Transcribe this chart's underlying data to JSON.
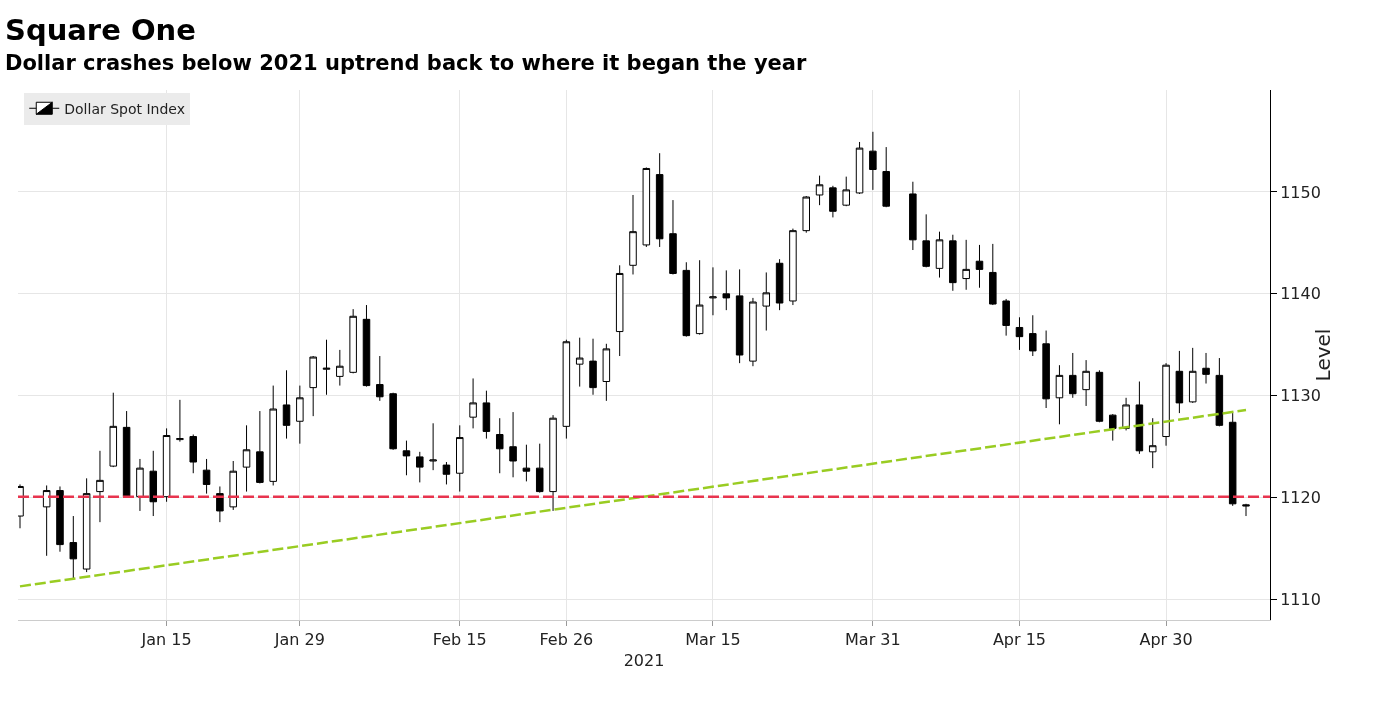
{
  "chart_data": {
    "type": "candlestick",
    "title": "Square One",
    "subtitle": "Dollar crashes below 2021 uptrend back to where it began the year",
    "xlabel": "2021",
    "ylabel": "Level",
    "categories": [
      null,
      null,
      null,
      null,
      null,
      null,
      null,
      null,
      null,
      null,
      null,
      "Jan 15",
      null,
      null,
      null,
      null,
      null,
      null,
      null,
      null,
      null,
      "Jan 29",
      null,
      null,
      null,
      null,
      null,
      null,
      null,
      null,
      null,
      null,
      null,
      "Feb 15",
      null,
      null,
      null,
      null,
      null,
      null,
      null,
      "Feb 26",
      null,
      null,
      null,
      null,
      null,
      null,
      null,
      null,
      null,
      null,
      "Mar 15",
      null,
      null,
      null,
      null,
      null,
      null,
      null,
      null,
      null,
      null,
      null,
      "Mar 31",
      null,
      null,
      null,
      null,
      null,
      null,
      null,
      null,
      null,
      null,
      "Apr 15",
      null,
      null,
      null,
      null,
      null,
      null,
      null,
      null,
      null,
      null,
      "Apr 30",
      null,
      null,
      null,
      null,
      null,
      null
    ],
    "color": "#000000",
    "series": [
      {
        "name": "Dollar Spot Index",
        "ohlc": [
          [
            1118.2,
            1121.3,
            1117.0,
            1121.1
          ],
          null,
          [
            1119.1,
            1121.2,
            1114.3,
            1120.7
          ],
          [
            1120.7,
            1121.1,
            1114.7,
            1115.4
          ],
          [
            1115.6,
            1118.2,
            1112.0,
            1114.0
          ],
          [
            1113.0,
            1121.9,
            1112.7,
            1120.4
          ],
          [
            1120.6,
            1124.6,
            1117.6,
            1121.7
          ],
          [
            1123.1,
            1130.3,
            1123.0,
            1127.0
          ],
          [
            1126.9,
            1128.5,
            1120.0,
            1120.1
          ],
          [
            1120.1,
            1123.8,
            1118.7,
            1122.9
          ],
          [
            1122.6,
            1124.6,
            1118.2,
            1119.6
          ],
          [
            1120.1,
            1126.8,
            1119.6,
            1126.1
          ],
          [
            1125.7,
            1129.6,
            1125.5,
            1125.8
          ],
          [
            1126.0,
            1126.2,
            1122.4,
            1123.5
          ],
          [
            1122.7,
            1123.8,
            1120.4,
            1121.3
          ],
          [
            1120.4,
            1121.1,
            1117.6,
            1118.7
          ],
          [
            1119.1,
            1123.6,
            1118.8,
            1122.6
          ],
          [
            1123.0,
            1127.1,
            1120.6,
            1124.7
          ],
          [
            1124.5,
            1128.5,
            1121.4,
            1121.5
          ],
          [
            1121.6,
            1131.0,
            1121.2,
            1128.7
          ],
          [
            1129.1,
            1132.5,
            1125.8,
            1127.1
          ],
          [
            1127.5,
            1131.0,
            1125.3,
            1129.8
          ],
          [
            1130.8,
            1133.9,
            1128.0,
            1133.8
          ],
          [
            1132.6,
            1135.5,
            1130.1,
            1132.7
          ],
          [
            1131.9,
            1134.5,
            1131.0,
            1132.9
          ],
          [
            1132.3,
            1138.5,
            1132.2,
            1137.8
          ],
          [
            1137.5,
            1138.9,
            1130.9,
            1131.0
          ],
          [
            1131.1,
            1133.9,
            1129.5,
            1129.9
          ],
          [
            1130.2,
            1130.3,
            1124.7,
            1124.8
          ],
          [
            1124.6,
            1125.6,
            1122.2,
            1124.1
          ],
          [
            1124.0,
            1124.5,
            1121.5,
            1123.0
          ],
          [
            1123.6,
            1127.3,
            1122.7,
            1123.7
          ],
          [
            1123.2,
            1123.5,
            1121.3,
            1122.3
          ],
          [
            1122.4,
            1127.1,
            1120.6,
            1125.9
          ],
          [
            1127.9,
            1131.7,
            1126.8,
            1129.3
          ],
          [
            1129.3,
            1130.5,
            1125.8,
            1126.5
          ],
          [
            1126.2,
            1127.8,
            1122.4,
            1124.8
          ],
          [
            1125.0,
            1128.4,
            1122.0,
            1123.6
          ],
          [
            1122.9,
            1125.2,
            1121.6,
            1122.6
          ],
          [
            1122.9,
            1125.3,
            1120.5,
            1120.6
          ],
          [
            1120.6,
            1128.1,
            1118.7,
            1127.8
          ],
          [
            1127.0,
            1135.5,
            1125.8,
            1135.3
          ],
          [
            1133.1,
            1135.7,
            1130.9,
            1133.7
          ],
          [
            1133.4,
            1135.6,
            1130.1,
            1130.8
          ],
          [
            1131.4,
            1135.1,
            1129.5,
            1134.6
          ],
          [
            1136.3,
            1142.8,
            1133.9,
            1142.0
          ],
          [
            1142.8,
            1149.7,
            1141.9,
            1146.1
          ],
          [
            1144.8,
            1152.4,
            1144.6,
            1152.3
          ],
          [
            1151.7,
            1153.8,
            1144.6,
            1145.4
          ],
          [
            1145.9,
            1149.2,
            1141.9,
            1142.0
          ],
          [
            1142.3,
            1143.1,
            1135.8,
            1135.9
          ],
          [
            1136.1,
            1143.3,
            1136.0,
            1138.9
          ],
          [
            1139.6,
            1142.6,
            1137.9,
            1139.7
          ],
          [
            1140.0,
            1142.3,
            1138.4,
            1139.6
          ],
          [
            1139.8,
            1142.4,
            1133.2,
            1134.0
          ],
          [
            1133.4,
            1139.6,
            1132.9,
            1139.2
          ],
          [
            1138.8,
            1142.1,
            1136.4,
            1140.1
          ],
          [
            1143.0,
            1143.4,
            1138.4,
            1139.1
          ],
          [
            1139.3,
            1146.4,
            1138.9,
            1146.2
          ],
          [
            1146.2,
            1149.6,
            1146.0,
            1149.5
          ],
          [
            1149.7,
            1151.6,
            1148.7,
            1150.7
          ],
          [
            1150.4,
            1150.6,
            1147.5,
            1148.1
          ],
          [
            1148.7,
            1151.5,
            1148.6,
            1150.2
          ],
          [
            1149.9,
            1154.9,
            1149.8,
            1154.3
          ],
          [
            1154.0,
            1155.9,
            1150.2,
            1152.2
          ],
          [
            1152.0,
            1154.4,
            1148.5,
            1148.6
          ],
          null,
          [
            1149.8,
            1151.0,
            1144.3,
            1145.3
          ],
          [
            1145.2,
            1147.8,
            1142.6,
            1142.7
          ],
          [
            1142.5,
            1146.1,
            1141.6,
            1145.3
          ],
          [
            1145.2,
            1145.8,
            1140.3,
            1141.1
          ],
          [
            1141.5,
            1145.3,
            1140.4,
            1142.4
          ],
          [
            1143.2,
            1144.8,
            1140.6,
            1142.4
          ],
          [
            1142.1,
            1144.9,
            1138.9,
            1139.0
          ],
          [
            1139.3,
            1139.5,
            1135.9,
            1136.9
          ],
          [
            1136.7,
            1137.7,
            1134.5,
            1135.8
          ],
          [
            1136.1,
            1137.9,
            1133.9,
            1134.4
          ],
          [
            1135.1,
            1136.4,
            1128.8,
            1129.7
          ],
          [
            1129.8,
            1133.0,
            1127.2,
            1132.0
          ],
          [
            1132.0,
            1134.2,
            1129.8,
            1130.2
          ],
          [
            1130.6,
            1133.5,
            1129.0,
            1132.4
          ],
          [
            1132.3,
            1132.5,
            1127.4,
            1127.5
          ],
          [
            1128.1,
            1128.2,
            1125.6,
            1126.8
          ],
          [
            1126.8,
            1129.8,
            1126.6,
            1129.1
          ],
          [
            1129.1,
            1131.4,
            1124.3,
            1124.6
          ],
          [
            1124.5,
            1127.8,
            1122.9,
            1125.1
          ],
          [
            1126.0,
            1133.2,
            1125.1,
            1133.0
          ],
          [
            1132.4,
            1134.4,
            1128.3,
            1129.3
          ],
          [
            1129.4,
            1134.7,
            1129.3,
            1132.4
          ],
          [
            1132.7,
            1134.2,
            1131.2,
            1132.1
          ],
          [
            1132.0,
            1133.7,
            1127.0,
            1127.1
          ],
          [
            1127.4,
            1128.3,
            1119.2,
            1119.4
          ],
          [
            1119.3,
            1119.4,
            1118.2,
            1119.2
          ]
        ]
      },
      {
        "type": "line",
        "color": "#99cc22",
        "line_style": "dashed",
        "values": [
          1111.3,
          null,
          null,
          null,
          null,
          null,
          null,
          null,
          null,
          null,
          null,
          null,
          null,
          null,
          null,
          null,
          null,
          null,
          null,
          null,
          null,
          null,
          null,
          null,
          null,
          null,
          null,
          null,
          null,
          null,
          null,
          null,
          null,
          null,
          null,
          null,
          null,
          null,
          null,
          null,
          null,
          null,
          null,
          null,
          null,
          null,
          null,
          null,
          null,
          null,
          null,
          null,
          null,
          null,
          null,
          null,
          null,
          null,
          null,
          null,
          null,
          null,
          null,
          null,
          null,
          null,
          null,
          null,
          null,
          null,
          null,
          null,
          null,
          null,
          null,
          null,
          null,
          null,
          null,
          null,
          null,
          null,
          null,
          null,
          null,
          null,
          null,
          null,
          null,
          null,
          null,
          null,
          1128.6
        ]
      }
    ],
    "ref_lines": [
      {
        "axis": "y",
        "value": 1120.1,
        "color": "#e8344e",
        "line_style": "dashed"
      }
    ],
    "ylim": [
      1108,
      1160
    ],
    "yticks": [
      1110,
      1120,
      1130,
      1140,
      1150
    ],
    "grid": true,
    "legend": "top left"
  }
}
